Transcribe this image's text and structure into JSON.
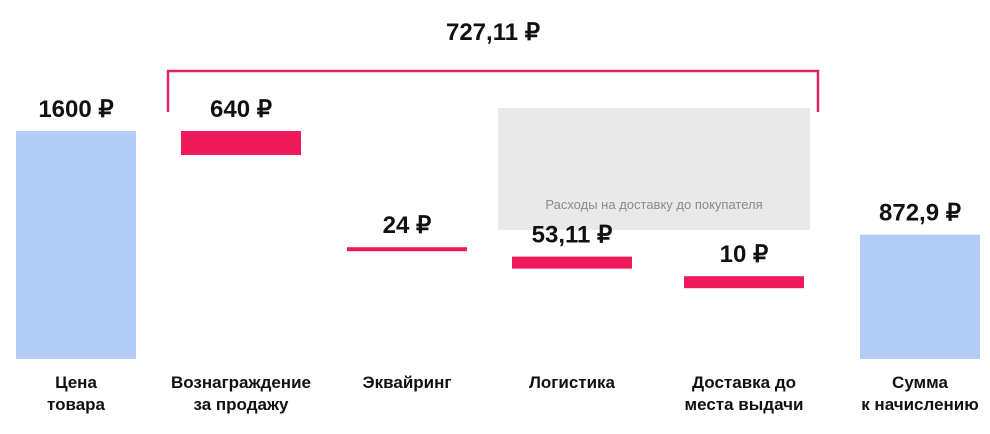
{
  "chart_data": {
    "type": "bar",
    "subtype": "waterfall",
    "categories": [
      [
        "Цена",
        "товара"
      ],
      [
        "Вознаграждение",
        "за продажу"
      ],
      [
        "Эквайринг"
      ],
      [
        "Логистика"
      ],
      [
        "Доставка до",
        "места выдачи"
      ],
      [
        "Сумма",
        "к начислению"
      ]
    ],
    "values": [
      1600,
      640,
      24,
      53.11,
      10,
      872.9
    ],
    "value_labels": [
      "1600 ₽",
      "640 ₽",
      "24 ₽",
      "53,11 ₽",
      "10 ₽",
      "872,9 ₽"
    ],
    "kinds": [
      "total",
      "deduction",
      "deduction",
      "deduction",
      "deduction",
      "total"
    ],
    "total_deductions_label": "727,11 ₽",
    "total_deductions": 727.11,
    "group_note": "Расходы на доставку до покупателя",
    "colors": {
      "total": "#b3cdf8",
      "deduction": "#f0195a",
      "bracket": "#e0245e",
      "group_bg": "#e9e9ea"
    }
  }
}
